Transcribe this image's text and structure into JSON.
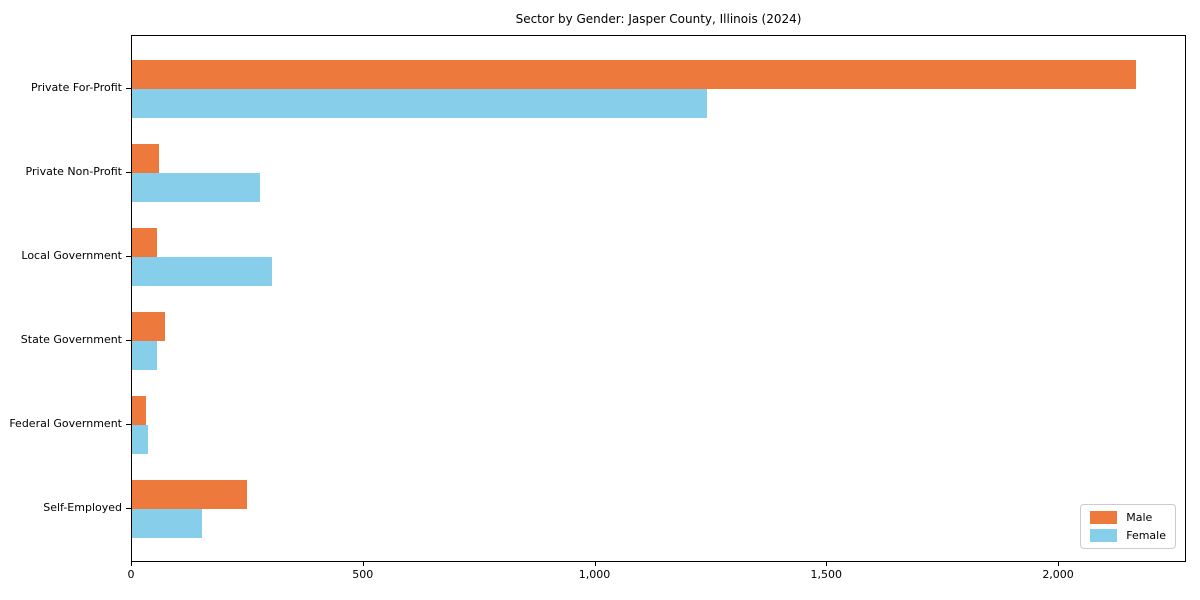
{
  "chart_data": {
    "type": "bar",
    "orientation": "horizontal",
    "title": "Sector by Gender: Jasper County, Illinois (2024)",
    "categories": [
      "Private For-Profit",
      "Private Non-Profit",
      "Local Government",
      "State Government",
      "Federal Government",
      "Self-Employed"
    ],
    "series": [
      {
        "name": "Male",
        "color": "#ed7a3c",
        "values": [
          2166,
          59,
          55,
          72,
          31,
          248
        ]
      },
      {
        "name": "Female",
        "color": "#87ceeb",
        "values": [
          1240,
          277,
          303,
          55,
          34,
          151
        ]
      }
    ],
    "xlim": [
      0,
      2276
    ],
    "x_ticks": [
      0,
      500,
      1000,
      1500,
      2000
    ],
    "x_tick_labels": [
      "0",
      "500",
      "1,000",
      "1,500",
      "2,000"
    ],
    "xlabel": "",
    "ylabel": "",
    "grid": false,
    "legend": {
      "position": "lower right",
      "entries": [
        "Male",
        "Female"
      ]
    },
    "colors": {
      "plot_background": "#ffffff",
      "spine": "#000000",
      "text": "#000000",
      "legend_border": "#cccccc"
    }
  }
}
